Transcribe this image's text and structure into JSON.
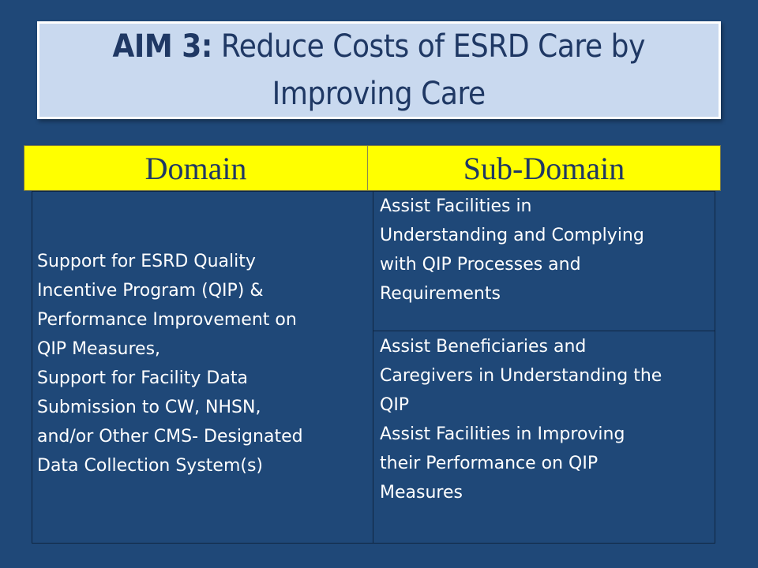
{
  "title": {
    "bold": "AIM 3:",
    "line1_rest": " Reduce Costs of ESRD Care by",
    "line2": "Improving Care"
  },
  "table": {
    "headers": {
      "domain": "Domain",
      "subdomain": "Sub-Domain"
    },
    "domain_lines": [
      "Support for ESRD Quality",
      "Incentive Program (QIP) &",
      "Performance Improvement on",
      "QIP Measures,",
      "Support for Facility Data",
      "Submission to CW, NHSN,",
      "and/or Other CMS- Designated",
      "Data Collection System(s)"
    ],
    "subdomain_1_lines": [
      "Assist Facilities in",
      "Understanding and Complying",
      "with QIP Processes and",
      "Requirements"
    ],
    "subdomain_2_lines": [
      "Assist Beneficiaries and",
      "Caregivers in Understanding the",
      "QIP",
      "Assist Facilities in Improving",
      "their Performance on QIP",
      "Measures"
    ]
  }
}
